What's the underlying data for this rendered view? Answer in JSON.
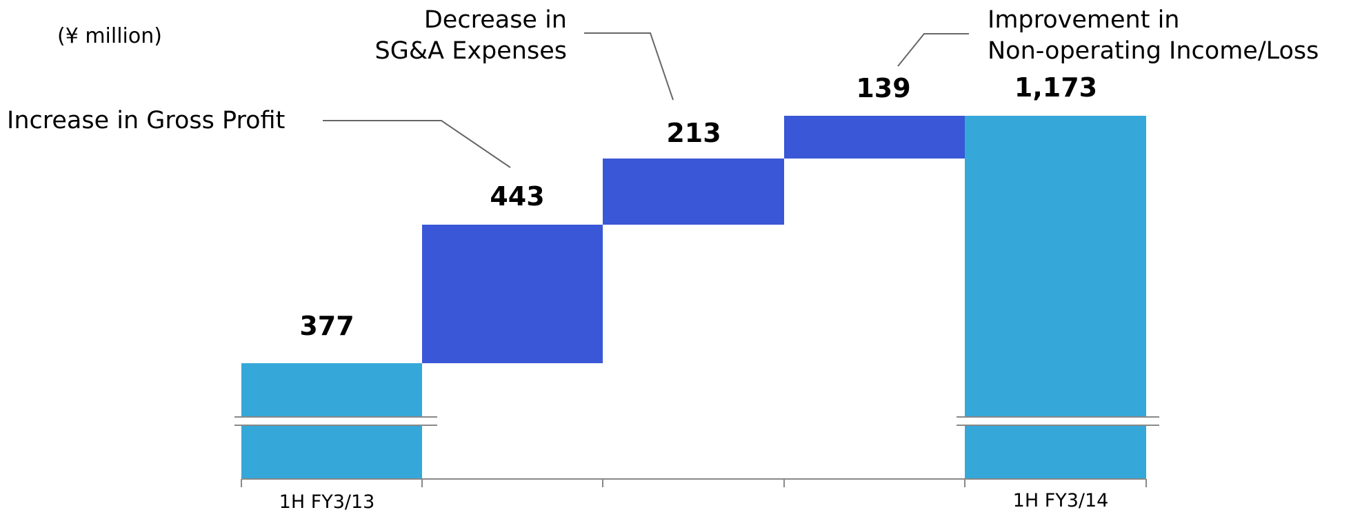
{
  "chart_data": {
    "type": "waterfall",
    "unit_label": "(¥ million)",
    "categories": [
      "1H FY3/13",
      "",
      "",
      "",
      "1H FY3/14"
    ],
    "steps": [
      {
        "kind": "total",
        "value": 377,
        "label": "377"
      },
      {
        "kind": "delta",
        "value": 443,
        "label": "443"
      },
      {
        "kind": "delta",
        "value": 213,
        "label": "213"
      },
      {
        "kind": "delta",
        "value": 139,
        "label": "139"
      },
      {
        "kind": "total",
        "value": 1173,
        "label": "1,173"
      }
    ],
    "annotations": [
      {
        "step": 1,
        "lines": [
          "Increase in Gross Profit"
        ]
      },
      {
        "step": 2,
        "lines": [
          "Decrease in",
          "SG&A Expenses"
        ]
      },
      {
        "step": 3,
        "lines": [
          "Improvement in",
          "Non-operating Income/Loss"
        ]
      }
    ],
    "axis_break": true,
    "colors": {
      "total": "#35a8d9",
      "delta": "#3957d6",
      "axis": "#888888",
      "text": "#111111"
    }
  }
}
